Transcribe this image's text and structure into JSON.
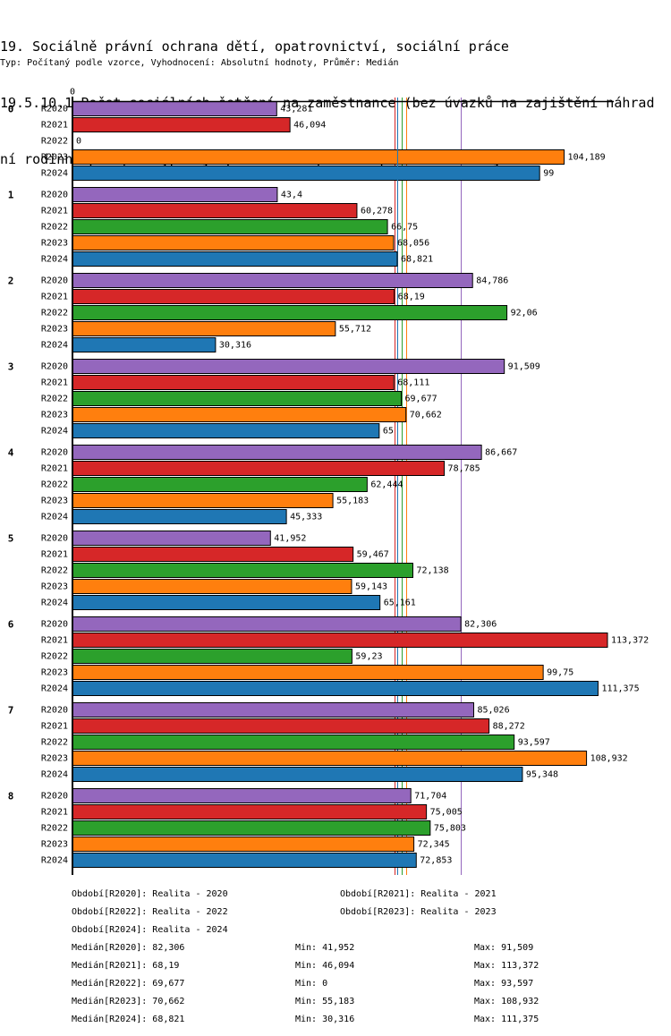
{
  "header": {
    "title_lines": [
      "19. Sociálně právní ochrana dětí, opatrovnictví, sociální práce",
      "19.5.10.1 Počet sociálních šetření na zaměstnance (bez úvazků na zajištění náhrad",
      "ní rodinné péče) - vyplňují pouze OSPOD, které průkazně sledují"
    ],
    "subtitle": "Typ: Počítaný podle vzorce, Vyhodnocení: Absolutní hodnoty, Průměr: Medián"
  },
  "chart_data": {
    "type": "bar",
    "orientation": "horizontal",
    "title": "19.5.10.1 Počet sociálních šetření na zaměstnance (bez úvazků na zajištění náhradní rodinné péče) - vyplňují pouze OSPOD, které průkazně sledují",
    "xlabel": "",
    "ylabel": "",
    "categories": [
      "0",
      "1",
      "2",
      "3",
      "4",
      "5",
      "6",
      "7",
      "8"
    ],
    "xlim": [
      0,
      114.7
    ],
    "x_tick_labels": [
      "0"
    ],
    "grid": false,
    "decimal_separator": ",",
    "reference_lines": "median per series",
    "series": [
      {
        "name": "R2020",
        "color": "#9467bd",
        "median": 82.306,
        "values": [
          43.281,
          43.4,
          84.786,
          91.509,
          86.667,
          41.952,
          82.306,
          85.026,
          71.704
        ]
      },
      {
        "name": "R2021",
        "color": "#d62728",
        "median": 68.19,
        "values": [
          46.094,
          60.278,
          68.19,
          68.111,
          78.785,
          59.467,
          113.372,
          88.272,
          75.005
        ]
      },
      {
        "name": "R2022",
        "color": "#2ca02c",
        "median": 69.677,
        "values": [
          0,
          66.75,
          92.06,
          69.677,
          62.444,
          72.138,
          59.23,
          93.597,
          75.803
        ]
      },
      {
        "name": "R2023",
        "color": "#ff7f0e",
        "median": 70.662,
        "values": [
          104.189,
          68.056,
          55.712,
          70.662,
          55.183,
          59.143,
          99.75,
          108.932,
          72.345
        ]
      },
      {
        "name": "R2024",
        "color": "#1f77b4",
        "median": 68.821,
        "values": [
          99,
          68.821,
          30.316,
          65,
          45.333,
          65.161,
          111.375,
          95.348,
          72.853
        ]
      }
    ]
  },
  "legend": {
    "periods": [
      {
        "text": "Období[R2020]: Realita - 2020"
      },
      {
        "text": "Období[R2021]: Realita - 2021"
      },
      {
        "text": "Období[R2022]: Realita - 2022"
      },
      {
        "text": "Období[R2023]: Realita - 2023"
      },
      {
        "text": "Období[R2024]: Realita - 2024"
      }
    ],
    "stats": [
      {
        "median": "Medián[R2020]: 82,306",
        "min": "Min: 41,952",
        "max": "Max: 91,509"
      },
      {
        "median": "Medián[R2021]: 68,19",
        "min": "Min: 46,094",
        "max": "Max: 113,372"
      },
      {
        "median": "Medián[R2022]: 69,677",
        "min": "Min: 0",
        "max": "Max: 93,597"
      },
      {
        "median": "Medián[R2023]: 70,662",
        "min": "Min: 55,183",
        "max": "Max: 108,932"
      },
      {
        "median": "Medián[R2024]: 68,821",
        "min": "Min: 30,316",
        "max": "Max: 111,375"
      }
    ]
  }
}
